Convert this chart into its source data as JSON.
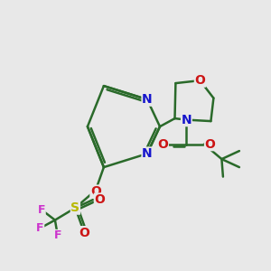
{
  "bg": "#e8e8e8",
  "bond_color": "#2a6a2a",
  "bond_width": 1.8,
  "atom_colors": {
    "N": "#1515cc",
    "O": "#cc1515",
    "S": "#b8b800",
    "F": "#cc33cc",
    "C": "#2a6a2a"
  },
  "font_size": 10.0,
  "font_size_f": 9.0
}
